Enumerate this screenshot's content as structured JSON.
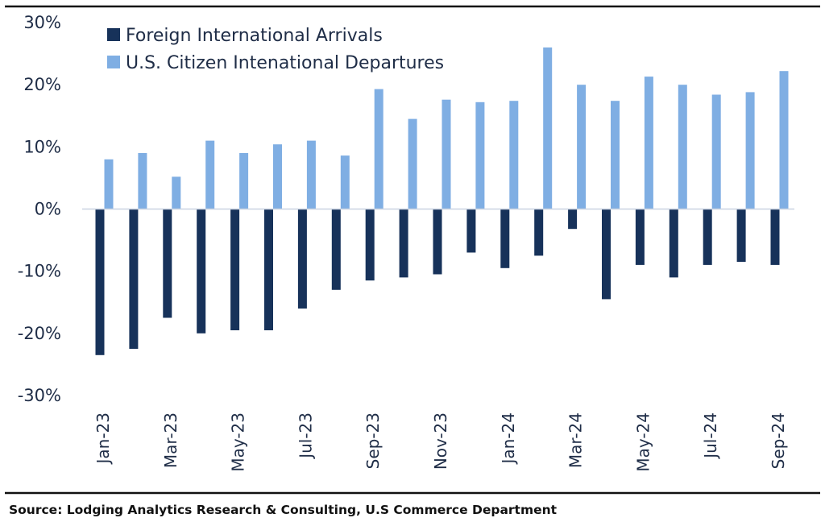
{
  "chart_data": {
    "type": "bar",
    "categories": [
      "Jan-23",
      "Feb-23",
      "Mar-23",
      "Apr-23",
      "May-23",
      "Jun-23",
      "Jul-23",
      "Aug-23",
      "Sep-23",
      "Oct-23",
      "Nov-23",
      "Dec-23",
      "Jan-24",
      "Feb-24",
      "Mar-24",
      "Apr-24",
      "May-24",
      "Jun-24",
      "Jul-24",
      "Aug-24",
      "Sep-24"
    ],
    "tick_labels": [
      "Jan-23",
      "Mar-23",
      "May-23",
      "Jul-23",
      "Sep-23",
      "Nov-23",
      "Jan-24",
      "Mar-24",
      "May-24",
      "Jul-24",
      "Sep-24"
    ],
    "series": [
      {
        "name": "Foreign International Arrivals",
        "color": "#17325a",
        "values": [
          -23.5,
          -22.5,
          -17.5,
          -20,
          -19.5,
          -19.5,
          -16,
          -13,
          -11.5,
          -11,
          -10.5,
          -7,
          -9.5,
          -7.5,
          -3.2,
          -14.5,
          -9,
          -11,
          -9,
          -8.5,
          -9
        ]
      },
      {
        "name": "U.S. Citizen Intenational Departures",
        "color": "#7faee3",
        "values": [
          8,
          9,
          5.2,
          11,
          9,
          10.4,
          11,
          8.6,
          19.3,
          14.5,
          17.6,
          17.2,
          17.4,
          26,
          20,
          17.4,
          21.3,
          20,
          18.4,
          18.8,
          22.2
        ]
      }
    ],
    "yticks": [
      "30%",
      "20%",
      "10%",
      "0%",
      "-10%",
      "-20%",
      "-30%"
    ],
    "ylim": [
      -30,
      30
    ],
    "legend_position": "top-left",
    "title": "",
    "xlabel": "",
    "ylabel": ""
  },
  "source": "Source: Lodging Analytics Research & Consulting, U.S Commerce Department"
}
